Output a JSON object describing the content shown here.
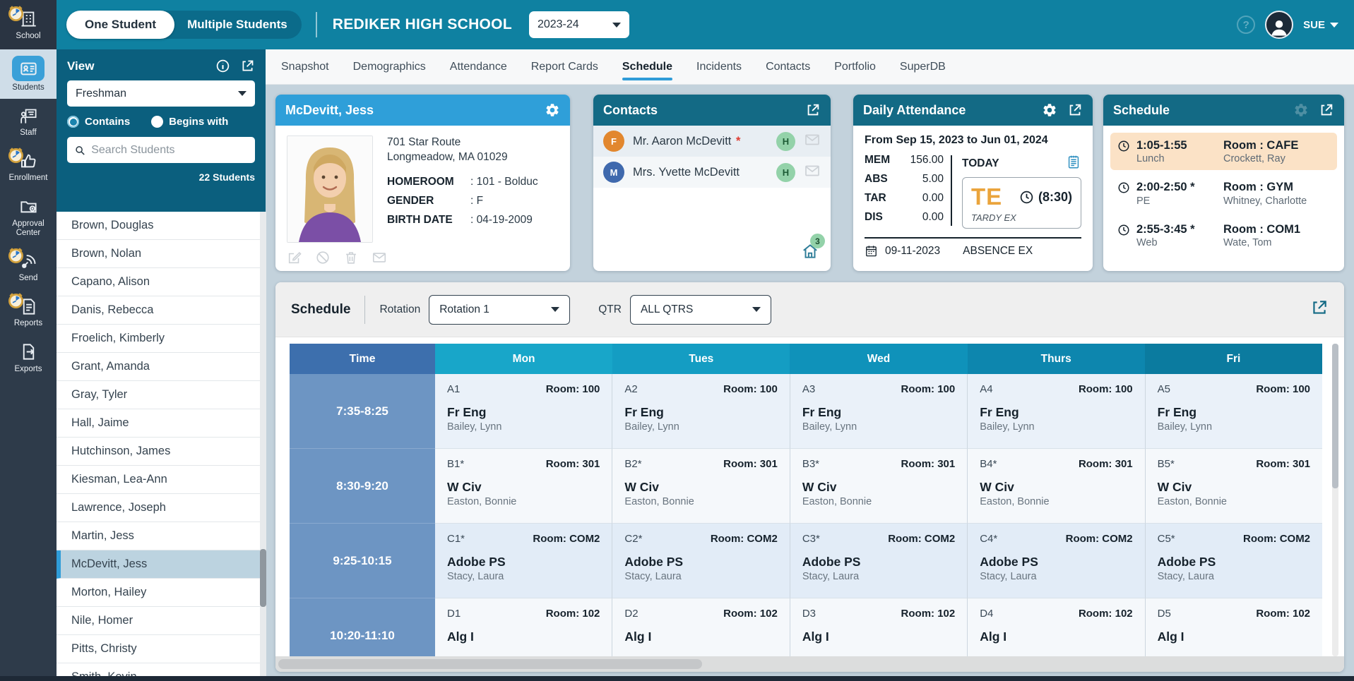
{
  "topbar": {
    "toggle": {
      "one": "One Student",
      "multiple": "Multiple Students"
    },
    "school_name": "REDIKER HIGH SCHOOL",
    "year": "2023-24",
    "user": "SUE",
    "help_glyph": "?"
  },
  "sidebar": {
    "items": [
      {
        "label": "School",
        "icon": "school-building-icon",
        "clock": true,
        "active": false
      },
      {
        "label": "Students",
        "icon": "id-card-icon",
        "clock": false,
        "active": true
      },
      {
        "label": "Staff",
        "icon": "staff-board-icon",
        "clock": false,
        "active": false
      },
      {
        "label": "Enrollment",
        "icon": "thumbs-up-icon",
        "clock": true,
        "active": false
      },
      {
        "label": "Approval Center",
        "icon": "folder-approve-icon",
        "clock": false,
        "active": false
      },
      {
        "label": "Send",
        "icon": "send-signal-icon",
        "clock": true,
        "active": false
      },
      {
        "label": "Reports",
        "icon": "report-doc-icon",
        "clock": true,
        "active": false
      },
      {
        "label": "Exports",
        "icon": "export-doc-icon",
        "clock": false,
        "active": false
      }
    ]
  },
  "view_panel": {
    "title": "View",
    "view_value": "Freshman",
    "radio_contains": "Contains",
    "radio_begins": "Begins with",
    "search_placeholder": "Search Students",
    "count": "22 Students"
  },
  "student_list": {
    "selected": "McDevitt, Jess",
    "names": [
      "Brown, Douglas",
      "Brown, Nolan",
      "Capano, Alison",
      "Danis, Rebecca",
      "Froelich, Kimberly",
      "Grant, Amanda",
      "Gray, Tyler",
      "Hall, Jaime",
      "Hutchinson, James",
      "Kiesman, Lea-Ann",
      "Lawrence, Joseph",
      "Martin, Jess",
      "McDevitt, Jess",
      "Morton, Hailey",
      "Nile, Homer",
      "Pitts, Christy",
      "Smith, Kevin"
    ]
  },
  "tabs": {
    "active": "Schedule",
    "items": [
      "Snapshot",
      "Demographics",
      "Attendance",
      "Report Cards",
      "Schedule",
      "Incidents",
      "Contacts",
      "Portfolio",
      "SuperDB"
    ]
  },
  "student_card": {
    "name": "McDevitt, Jess",
    "address_line1": "701 Star Route",
    "address_line2": "Longmeadow, MA 01029",
    "fields": [
      {
        "label": "HOMEROOM",
        "value": ": 101 - Bolduc"
      },
      {
        "label": "GENDER",
        "value": ": F"
      },
      {
        "label": "BIRTH DATE",
        "value": ": 04-19-2009"
      }
    ]
  },
  "contacts_card": {
    "title": "Contacts",
    "rows": [
      {
        "initial": "F",
        "initial_color": "#e2872e",
        "name": "Mr. Aaron McDevitt",
        "starred": true,
        "badge": "H"
      },
      {
        "initial": "M",
        "initial_color": "#3f69ad",
        "name": "Mrs. Yvette McDevitt",
        "starred": false,
        "badge": "H"
      }
    ],
    "household_count": "3"
  },
  "attendance_card": {
    "title": "Daily Attendance",
    "range": "From Sep 15, 2023 to Jun 01, 2024",
    "stats": [
      {
        "label": "MEM",
        "value": "156.00"
      },
      {
        "label": "ABS",
        "value": "5.00"
      },
      {
        "label": "TAR",
        "value": "0.00"
      },
      {
        "label": "DIS",
        "value": "0.00"
      }
    ],
    "today_label": "TODAY",
    "today_code": "TE",
    "today_code_color": "#eaa43c",
    "today_time": "(8:30)",
    "today_desc": "TARDY EX",
    "last_date": "09-11-2023",
    "last_desc": "ABSENCE EX"
  },
  "schedule_card": {
    "title": "Schedule",
    "rows": [
      {
        "time": "1:05-1:55",
        "course": "Lunch",
        "room": "Room : CAFE",
        "teacher": "Crockett, Ray",
        "highlight": true
      },
      {
        "time": "2:00-2:50 *",
        "course": "PE",
        "room": "Room : GYM",
        "teacher": "Whitney, Charlotte",
        "highlight": false
      },
      {
        "time": "2:55-3:45 *",
        "course": "Web",
        "room": "Room : COM1",
        "teacher": "Wate, Tom",
        "highlight": false
      }
    ]
  },
  "schedule_section": {
    "title": "Schedule",
    "rotation_label": "Rotation",
    "rotation_value": "Rotation 1",
    "qtr_label": "QTR",
    "qtr_value": "ALL QTRS",
    "table": {
      "time_header": "Time",
      "time_header_color": "#3d6fad",
      "day_headers": [
        "Mon",
        "Tues",
        "Wed",
        "Thurs",
        "Fri"
      ],
      "day_header_colors": [
        "#18a6c9",
        "#149dc3",
        "#0f92ba",
        "#0d86ae",
        "#0b7b9f"
      ],
      "row_colors": [
        "#eaf1f9",
        "#f5f8fb",
        "#e2ecf7",
        "#f5f8fb"
      ],
      "rows": [
        {
          "time": "7:35-8:25",
          "cells": [
            {
              "code": "A1",
              "room": "Room: 100",
              "course": "Fr Eng",
              "teacher": "Bailey, Lynn"
            },
            {
              "code": "A2",
              "room": "Room: 100",
              "course": "Fr Eng",
              "teacher": "Bailey, Lynn"
            },
            {
              "code": "A3",
              "room": "Room: 100",
              "course": "Fr Eng",
              "teacher": "Bailey, Lynn"
            },
            {
              "code": "A4",
              "room": "Room: 100",
              "course": "Fr Eng",
              "teacher": "Bailey, Lynn"
            },
            {
              "code": "A5",
              "room": "Room: 100",
              "course": "Fr Eng",
              "teacher": "Bailey, Lynn"
            }
          ]
        },
        {
          "time": "8:30-9:20",
          "cells": [
            {
              "code": "B1*",
              "room": "Room: 301",
              "course": "W Civ",
              "teacher": "Easton, Bonnie"
            },
            {
              "code": "B2*",
              "room": "Room: 301",
              "course": "W Civ",
              "teacher": "Easton, Bonnie"
            },
            {
              "code": "B3*",
              "room": "Room: 301",
              "course": "W Civ",
              "teacher": "Easton, Bonnie"
            },
            {
              "code": "B4*",
              "room": "Room: 301",
              "course": "W Civ",
              "teacher": "Easton, Bonnie"
            },
            {
              "code": "B5*",
              "room": "Room: 301",
              "course": "W Civ",
              "teacher": "Easton, Bonnie"
            }
          ]
        },
        {
          "time": "9:25-10:15",
          "cells": [
            {
              "code": "C1*",
              "room": "Room: COM2",
              "course": "Adobe PS",
              "teacher": "Stacy, Laura"
            },
            {
              "code": "C2*",
              "room": "Room: COM2",
              "course": "Adobe PS",
              "teacher": "Stacy, Laura"
            },
            {
              "code": "C3*",
              "room": "Room: COM2",
              "course": "Adobe PS",
              "teacher": "Stacy, Laura"
            },
            {
              "code": "C4*",
              "room": "Room: COM2",
              "course": "Adobe PS",
              "teacher": "Stacy, Laura"
            },
            {
              "code": "C5*",
              "room": "Room: COM2",
              "course": "Adobe PS",
              "teacher": "Stacy, Laura"
            }
          ]
        },
        {
          "time": "10:20-11:10",
          "cells": [
            {
              "code": "D1",
              "room": "Room: 102",
              "course": "Alg I",
              "teacher": ""
            },
            {
              "code": "D2",
              "room": "Room: 102",
              "course": "Alg I",
              "teacher": ""
            },
            {
              "code": "D3",
              "room": "Room: 102",
              "course": "Alg I",
              "teacher": ""
            },
            {
              "code": "D4",
              "room": "Room: 102",
              "course": "Alg I",
              "teacher": ""
            },
            {
              "code": "D5",
              "room": "Room: 102",
              "course": "Alg I",
              "teacher": ""
            }
          ]
        }
      ]
    }
  }
}
